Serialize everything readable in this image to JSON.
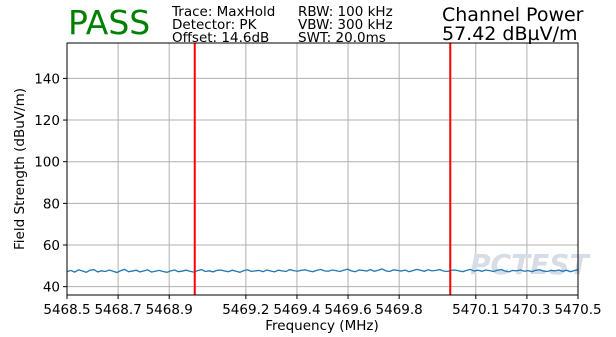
{
  "header": {
    "status": "PASS",
    "status_color": "#008000",
    "trace": "Trace: MaxHold",
    "detector": "Detector: PK",
    "offset": "Offset: 14.6dB",
    "rbw": "RBW: 100 kHz",
    "vbw": "VBW: 300 kHz",
    "swt": "SWT: 20.0ms",
    "measurement_title": "Channel Power",
    "measurement_value": "57.42 dBµV/m"
  },
  "watermark": "PCTEST",
  "chart_data": {
    "type": "line",
    "xlabel": "Frequency (MHz)",
    "ylabel": "Field Strength (dBuV/m)",
    "xlim": [
      5468.5,
      5470.5
    ],
    "ylim": [
      36,
      157
    ],
    "grid": true,
    "x_ticks": [
      5468.5,
      5468.7,
      5468.9,
      5469.2,
      5469.4,
      5469.6,
      5469.8,
      5470.1,
      5470.3,
      5470.5
    ],
    "x_tick_labels": [
      "5468.5",
      "5468.7",
      "5468.9",
      "5469.2",
      "5469.4",
      "5469.6",
      "5469.8",
      "5470.1",
      "5470.3",
      "5470.5"
    ],
    "y_ticks": [
      40,
      60,
      80,
      100,
      120,
      140
    ],
    "y_tick_labels": [
      "40",
      "60",
      "80",
      "100",
      "120",
      "140"
    ],
    "markers": [
      {
        "x": 5469.0,
        "color": "#ff0000"
      },
      {
        "x": 5470.0,
        "color": "#ff0000"
      }
    ],
    "series": [
      {
        "color": "#1f77b4",
        "x_start": 5468.5,
        "x_end": 5470.5,
        "values": [
          47.2,
          47.8,
          47.0,
          48.1,
          47.5,
          46.9,
          47.9,
          48.2,
          47.1,
          47.6,
          47.3,
          48.0,
          47.4,
          46.8,
          47.7,
          48.3,
          47.2,
          47.5,
          47.9,
          47.1,
          47.6,
          48.1,
          47.0,
          47.4,
          47.8,
          47.3,
          46.9,
          47.6,
          48.0,
          47.2,
          47.5,
          47.9,
          47.4,
          47.0,
          47.7,
          48.2,
          47.3,
          47.6,
          47.1,
          47.8,
          48.0,
          47.5,
          47.2,
          47.9,
          47.4,
          46.9,
          47.7,
          48.1,
          47.3,
          47.6,
          47.8,
          47.2,
          48.0,
          47.5,
          47.1,
          47.9,
          47.6,
          47.3,
          48.2,
          47.7,
          47.4,
          47.9,
          48.1,
          47.5,
          47.2,
          47.8,
          48.3,
          47.6,
          47.4,
          48.0,
          47.7,
          47.3,
          47.9,
          48.4,
          47.6,
          47.2,
          48.0,
          47.8,
          47.5,
          48.2,
          47.4,
          47.9,
          48.5,
          47.6,
          47.3,
          48.1,
          47.8,
          47.5,
          48.0,
          47.2,
          47.7,
          48.3,
          47.9,
          47.4,
          48.1,
          47.6,
          47.8,
          48.2,
          47.5,
          47.3,
          47.9,
          48.0,
          47.6,
          47.2,
          47.8,
          48.3,
          47.5,
          47.9,
          47.4,
          48.0,
          47.7,
          47.3,
          47.9,
          48.2,
          47.5,
          47.1,
          47.8,
          47.6,
          48.0,
          47.4,
          47.7,
          47.2,
          47.9,
          48.1,
          47.5,
          47.3,
          47.8,
          47.6,
          48.0,
          47.4,
          47.9,
          47.2,
          47.7,
          48.2
        ]
      }
    ]
  }
}
